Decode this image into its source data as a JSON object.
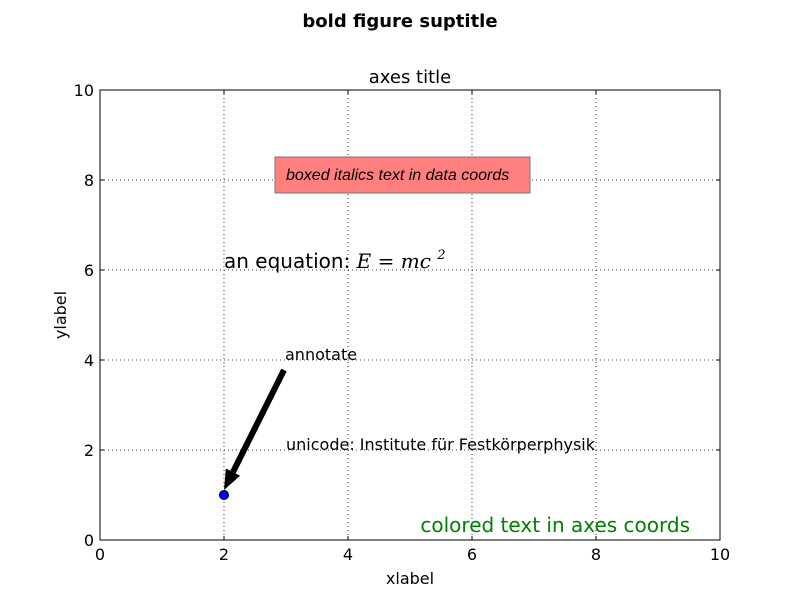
{
  "chart_data": {
    "type": "scatter",
    "suptitle": "bold figure suptitle",
    "title": "axes title",
    "xlabel": "xlabel",
    "ylabel": "ylabel",
    "xlim": [
      0,
      10
    ],
    "ylim": [
      0,
      10
    ],
    "grid": true,
    "xticks": [
      0,
      2,
      4,
      6,
      8,
      10
    ],
    "yticks": [
      0,
      2,
      4,
      6,
      8,
      10
    ],
    "points": [
      {
        "x": 2,
        "y": 1
      }
    ],
    "point_color": "#0000ff",
    "annotations": {
      "boxed": {
        "text": "boxed italics text in data coords",
        "x": 3,
        "y": 8,
        "box_color": "#ff7f7f"
      },
      "equation": {
        "prefix": "an equation: ",
        "math_lhs": "E",
        "math_eq": "=",
        "math_rhs": "mc",
        "math_exp": "2",
        "x": 2,
        "y": 6
      },
      "annotate": {
        "text": "annotate",
        "x": 3,
        "y": 4,
        "arrow_to": [
          2,
          1
        ]
      },
      "unicode": {
        "text": "unicode: Institute für Festkörperphysik",
        "x": 3,
        "y": 2
      },
      "colored": {
        "text": "colored text in axes coords",
        "color": "#008000",
        "anchor": "bottom-right"
      }
    }
  }
}
